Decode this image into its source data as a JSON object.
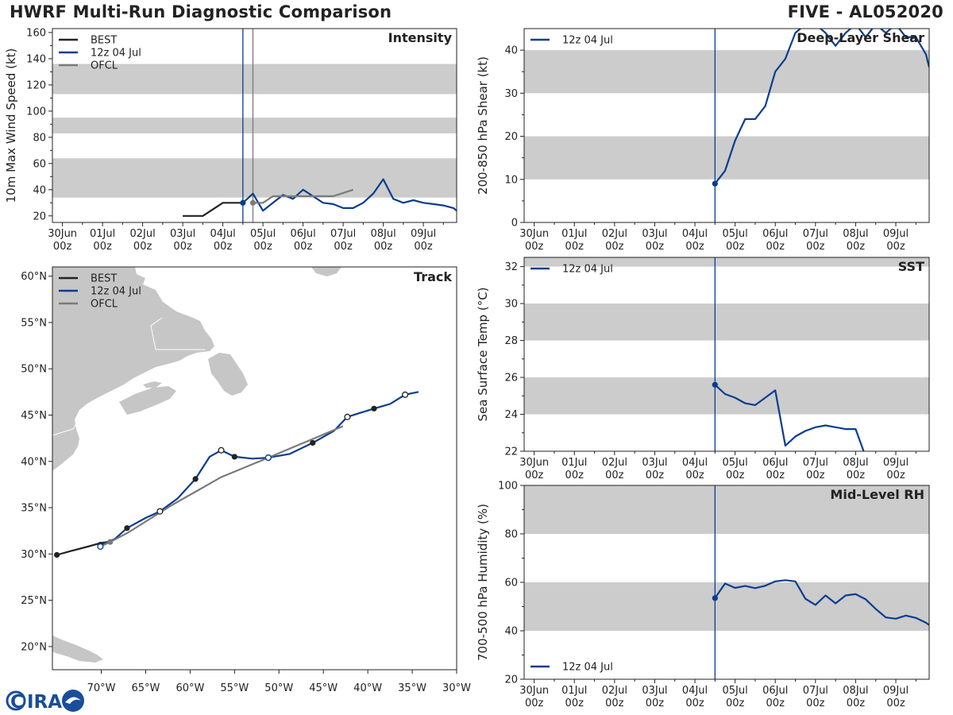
{
  "header": {
    "title": "HWRF Multi-Run Diagnostic Comparison",
    "storm_id": "FIVE - AL052020"
  },
  "colors": {
    "best": "#222222",
    "run": "#0a3d8f",
    "ofcl": "#7a7a7a",
    "band": "#cccccc",
    "land": "#c6c6c6",
    "frame": "#222222"
  },
  "time_axis": {
    "tick_labels": [
      [
        "30Jun",
        "00z"
      ],
      [
        "01Jul",
        "00z"
      ],
      [
        "02Jul",
        "00z"
      ],
      [
        "03Jul",
        "00z"
      ],
      [
        "04Jul",
        "00z"
      ],
      [
        "05Jul",
        "00z"
      ],
      [
        "06Jul",
        "00z"
      ],
      [
        "07Jul",
        "00z"
      ],
      [
        "08Jul",
        "00z"
      ],
      [
        "09Jul",
        "00z"
      ]
    ],
    "tick_days": [
      0,
      1,
      2,
      3,
      4,
      5,
      6,
      7,
      8,
      9
    ],
    "xlim_days": [
      -0.25,
      9.83
    ],
    "init_day": 4.5
  },
  "chart_data": [
    {
      "id": "intensity",
      "type": "line",
      "title": "Intensity",
      "ylabel": "10m Max Wind Speed (kt)",
      "ylim": [
        15,
        163
      ],
      "yticks": [
        20,
        40,
        60,
        80,
        100,
        120,
        140,
        160
      ],
      "bands": [
        [
          34,
          64
        ],
        [
          83,
          95
        ],
        [
          113,
          136
        ]
      ],
      "vlines": [
        {
          "day": 4.5,
          "series": "run"
        },
        {
          "day": 4.75,
          "series": "ofcl"
        }
      ],
      "legend": [
        "BEST",
        "12z 04 Jul",
        "OFCL"
      ],
      "series": [
        {
          "name": "BEST",
          "key": "best",
          "x": [
            3.0,
            3.5,
            4.0,
            4.5
          ],
          "y": [
            20,
            20,
            30,
            30
          ]
        },
        {
          "name": "12z 04 Jul",
          "key": "run",
          "marker_at_start": true,
          "x": [
            4.5,
            4.75,
            5.0,
            5.25,
            5.5,
            5.75,
            6.0,
            6.25,
            6.5,
            6.75,
            7.0,
            7.25,
            7.5,
            7.75,
            8.0,
            8.25,
            8.5,
            8.75,
            9.0,
            9.25,
            9.5,
            9.75,
            9.83
          ],
          "y": [
            30,
            37,
            24,
            30,
            36,
            33,
            40,
            35,
            30,
            29,
            26,
            26,
            30,
            37,
            48,
            33,
            30,
            32,
            30,
            29,
            28,
            26,
            24
          ]
        },
        {
          "name": "OFCL",
          "key": "ofcl",
          "marker_at_start": true,
          "x": [
            4.75,
            5.0,
            5.25,
            5.75,
            6.75,
            7.25
          ],
          "y": [
            30,
            30,
            35,
            35,
            35,
            40
          ]
        }
      ]
    },
    {
      "id": "shear",
      "type": "line",
      "title": "Deep-Layer Shear",
      "ylabel": "200-850 hPa Shear (kt)",
      "ylim": [
        0,
        45
      ],
      "yticks": [
        0,
        10,
        20,
        30,
        40
      ],
      "bands": [
        [
          10,
          20
        ],
        [
          30,
          40
        ]
      ],
      "vlines": [
        {
          "day": 4.5,
          "series": "run"
        }
      ],
      "legend": [
        "12z 04 Jul"
      ],
      "legend_pos": "top-left",
      "series": [
        {
          "name": "12z 04 Jul",
          "key": "run",
          "marker_at_start": true,
          "x": [
            4.5,
            4.75,
            5.0,
            5.25,
            5.5,
            5.75,
            6.0,
            6.25,
            6.5,
            6.75,
            7.0,
            7.25,
            7.5,
            7.75,
            8.0,
            8.25,
            8.5,
            8.75,
            9.0,
            9.25,
            9.5,
            9.75,
            9.83
          ],
          "y": [
            9,
            12,
            19,
            24,
            24,
            27,
            35,
            38,
            44,
            46,
            46,
            44,
            41,
            44,
            46,
            43,
            46,
            44,
            46,
            43,
            43,
            39,
            36
          ]
        }
      ]
    },
    {
      "id": "sst",
      "type": "line",
      "title": "SST",
      "ylabel": "Sea Surface Temp (°C)",
      "ylim": [
        22,
        32.5
      ],
      "yticks": [
        22,
        24,
        26,
        28,
        30,
        32
      ],
      "bands": [
        [
          24,
          26
        ],
        [
          28,
          30
        ],
        [
          32,
          32.5
        ]
      ],
      "vlines": [
        {
          "day": 4.5,
          "series": "run"
        }
      ],
      "legend": [
        "12z 04 Jul"
      ],
      "legend_pos": "top-left",
      "series": [
        {
          "name": "12z 04 Jul",
          "key": "run",
          "marker_at_start": true,
          "x": [
            4.5,
            4.75,
            5.0,
            5.25,
            5.5,
            5.75,
            6.0,
            6.25,
            6.5,
            6.75,
            7.0,
            7.25,
            7.5,
            7.75,
            8.0,
            8.2
          ],
          "y": [
            25.6,
            25.1,
            24.9,
            24.6,
            24.5,
            24.9,
            25.3,
            22.3,
            22.8,
            23.1,
            23.3,
            23.4,
            23.3,
            23.2,
            23.2,
            22.0
          ]
        }
      ]
    },
    {
      "id": "rh",
      "type": "line",
      "title": "Mid-Level RH",
      "ylabel": "700-500 hPa Humidity (%)",
      "ylim": [
        20,
        100
      ],
      "yticks": [
        20,
        40,
        60,
        80,
        100
      ],
      "bands": [
        [
          40,
          60
        ],
        [
          80,
          100
        ]
      ],
      "vlines": [
        {
          "day": 4.5,
          "series": "run"
        }
      ],
      "legend": [
        "12z 04 Jul"
      ],
      "legend_pos": "bottom-left",
      "series": [
        {
          "name": "12z 04 Jul",
          "key": "run",
          "marker_at_start": true,
          "x": [
            4.5,
            4.75,
            5.0,
            5.25,
            5.5,
            5.75,
            6.0,
            6.25,
            6.5,
            6.75,
            7.0,
            7.25,
            7.5,
            7.75,
            8.0,
            8.25,
            8.5,
            8.75,
            9.0,
            9.25,
            9.5,
            9.75,
            9.83
          ],
          "y": [
            53.5,
            59.5,
            57.7,
            58.5,
            57.6,
            58.6,
            60.4,
            60.9,
            60.4,
            53.2,
            50.7,
            54.6,
            51.3,
            54.6,
            55.1,
            53,
            49,
            45.5,
            45,
            46.3,
            45.3,
            43.3,
            42.4
          ]
        }
      ]
    },
    {
      "id": "track",
      "type": "scatter",
      "title": "Track",
      "xlim": [
        -75.5,
        -30
      ],
      "ylim": [
        17.5,
        61
      ],
      "xticks": [
        -70,
        -65,
        -60,
        -55,
        -50,
        -45,
        -40,
        -35,
        -30
      ],
      "xtick_labels": [
        "70°W",
        "65°W",
        "60°W",
        "55°W",
        "50°W",
        "45°W",
        "40°W",
        "35°W",
        "30°W"
      ],
      "yticks": [
        20,
        25,
        30,
        35,
        40,
        45,
        50,
        55,
        60
      ],
      "ytick_labels": [
        "20°N",
        "25°N",
        "30°N",
        "35°N",
        "40°N",
        "45°N",
        "50°N",
        "55°N",
        "60°N"
      ],
      "legend": [
        "BEST",
        "12z 04 Jul",
        "OFCL"
      ],
      "series": [
        {
          "name": "BEST",
          "key": "best",
          "lon": [
            -75.0,
            -73.5,
            -71.5,
            -70.0,
            -69.3
          ],
          "lat": [
            29.9,
            30.3,
            30.8,
            31.2,
            31.3
          ],
          "filled": [
            -75.0
          ],
          "open": []
        },
        {
          "name": "12z 04 Jul",
          "key": "run",
          "lon": [
            -70.1,
            -68.5,
            -67.1,
            -65.0,
            -63.4,
            -61.4,
            -59.4,
            -57.8,
            -56.5,
            -55.0,
            -53.0,
            -51.2,
            -48.8,
            -46.2,
            -43.8,
            -42.3,
            -41.0,
            -39.3,
            -37.5,
            -35.8,
            -34.3
          ],
          "lat": [
            31.0,
            31.6,
            32.8,
            33.9,
            34.6,
            36.0,
            38.1,
            40.5,
            41.2,
            40.5,
            40.3,
            40.4,
            40.8,
            42.0,
            43.3,
            44.8,
            45.2,
            45.7,
            46.2,
            47.2,
            47.5
          ],
          "filled": [
            -70.1,
            -67.1,
            -59.4,
            -55.0,
            -46.2,
            -39.3
          ],
          "open": [
            -63.4,
            -56.5,
            -51.2,
            -42.3,
            -35.8
          ]
        },
        {
          "name": "OFCL",
          "key": "ofcl",
          "lon": [
            -70.1,
            -69.0,
            -67.0,
            -62.0,
            -56.5,
            -51.2,
            -46.0,
            -42.8
          ],
          "lat": [
            30.8,
            31.3,
            32.3,
            35.3,
            38.3,
            40.4,
            42.5,
            43.8
          ],
          "filled": [],
          "open": [
            -70.1,
            -51.2
          ],
          "filled_gray": [
            -69.0
          ]
        }
      ]
    }
  ],
  "logo": {
    "text": "CIRA"
  }
}
